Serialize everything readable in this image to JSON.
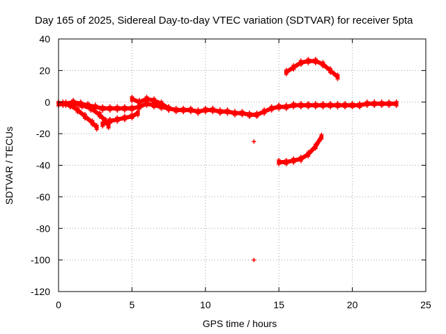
{
  "chart_data": {
    "type": "scatter",
    "title": "Day 165 of 2025, Sidereal Day-to-day VTEC variation (SDTVAR) for receiver 5pta",
    "xlabel": "GPS time / hours",
    "ylabel": "SDTVAR / TECUs",
    "xlim": [
      0,
      25
    ],
    "ylim": [
      -120,
      40
    ],
    "x_ticks": [
      0,
      5,
      10,
      15,
      20,
      25
    ],
    "y_ticks": [
      -120,
      -100,
      -80,
      -60,
      -40,
      -20,
      0,
      20,
      40
    ],
    "grid": true,
    "marker": "plus",
    "marker_color": "#ff0000",
    "series": [
      {
        "name": "main-band",
        "x": [
          0.0,
          0.5,
          1.0,
          1.5,
          2.0,
          2.5,
          3.0,
          3.5,
          4.0,
          4.5,
          5.0,
          5.5,
          6.0,
          6.5,
          7.0,
          7.5,
          8.0,
          8.5,
          9.0,
          9.5,
          10.0,
          10.5,
          11.0,
          11.5,
          12.0,
          12.5,
          13.0,
          13.5,
          14.0,
          14.5,
          15.0,
          15.5,
          16.0,
          16.5,
          17.0,
          17.5,
          18.0,
          18.5,
          19.0,
          19.5,
          20.0,
          20.5,
          21.0,
          21.5,
          22.0,
          22.5,
          23.0
        ],
        "y": [
          -1,
          -1,
          0,
          -1,
          -2,
          -3,
          -4,
          -4,
          -4,
          -4,
          -4,
          -3,
          -1,
          -2,
          -3,
          -4,
          -5,
          -5,
          -5,
          -6,
          -5,
          -5,
          -6,
          -6,
          -7,
          -7,
          -8,
          -8,
          -6,
          -4,
          -3,
          -3,
          -2,
          -2,
          -2,
          -2,
          -2,
          -2,
          -2,
          -2,
          -2,
          -2,
          -1,
          -1,
          -1,
          -1,
          -1
        ]
      },
      {
        "name": "early-descending-arc-a",
        "x": [
          0.3,
          0.8,
          1.3,
          1.8,
          2.3,
          2.6
        ],
        "y": [
          -1,
          -2,
          -5,
          -9,
          -13,
          -16
        ]
      },
      {
        "name": "early-descending-arc-b",
        "x": [
          1.0,
          1.6,
          2.2,
          2.8,
          3.2,
          3.4
        ],
        "y": [
          -1,
          -2,
          -4,
          -8,
          -12,
          -15
        ]
      },
      {
        "name": "early-returning-arc",
        "x": [
          3.0,
          3.5,
          4.0,
          4.5,
          5.0,
          5.4
        ],
        "y": [
          -14,
          -12,
          -11,
          -10,
          -9,
          -7
        ]
      },
      {
        "name": "mid-arc",
        "x": [
          5.0,
          5.5,
          6.0,
          6.5,
          7.0,
          7.5
        ],
        "y": [
          2,
          0,
          2,
          1,
          -1,
          -4
        ]
      },
      {
        "name": "late-upper-arc",
        "x": [
          15.5,
          16.0,
          16.5,
          17.0,
          17.5,
          18.0,
          18.5,
          19.0
        ],
        "y": [
          19,
          22,
          25,
          26,
          26,
          24,
          20,
          16
        ]
      },
      {
        "name": "late-lower-arc",
        "x": [
          15.0,
          15.5,
          16.0,
          16.5,
          17.0,
          17.5,
          17.9
        ],
        "y": [
          -38,
          -38,
          -37,
          -36,
          -33,
          -28,
          -22
        ]
      },
      {
        "name": "outlier-a",
        "x": [
          13.3
        ],
        "y": [
          -25
        ]
      },
      {
        "name": "outlier-b",
        "x": [
          13.3
        ],
        "y": [
          -100
        ]
      }
    ]
  }
}
